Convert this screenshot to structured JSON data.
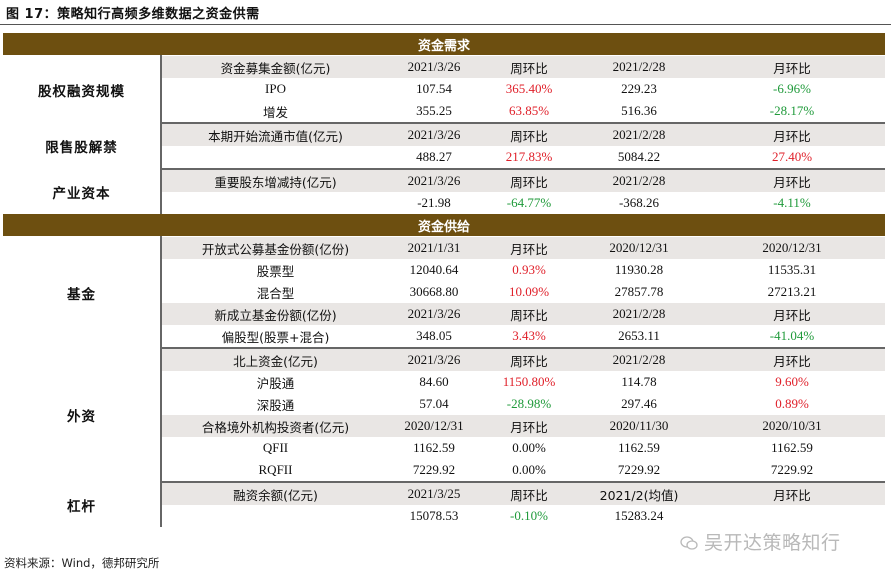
{
  "figure_title": "图 17：策略知行高频多维数据之资金供需",
  "sections": {
    "demand": "资金需求",
    "supply": "资金供给"
  },
  "categories": {
    "equity": "股权融资规模",
    "lockup": "限售股解禁",
    "industrial": "产业资本",
    "funds": "基金",
    "foreign": "外资",
    "leverage": "杠杆"
  },
  "rows": {
    "equity_hd": [
      "资金募集金额(亿元)",
      "2021/3/26",
      "周环比",
      "2021/2/28",
      "月环比"
    ],
    "ipo": [
      "IPO",
      "107.54",
      "365.40%",
      "229.23",
      "-6.96%"
    ],
    "addissue": [
      "增发",
      "355.25",
      "63.85%",
      "516.36",
      "-28.17%"
    ],
    "lockup_hd": [
      "本期开始流通市值(亿元)",
      "2021/3/26",
      "周环比",
      "2021/2/28",
      "月环比"
    ],
    "lockup": [
      "",
      "488.27",
      "217.83%",
      "5084.22",
      "27.40%"
    ],
    "holder_hd": [
      "重要股东增减持(亿元)",
      "2021/3/26",
      "周环比",
      "2021/2/28",
      "月环比"
    ],
    "holder": [
      "",
      "-21.98",
      "-64.77%",
      "-368.26",
      "-4.11%"
    ],
    "fund_hd": [
      "开放式公募基金份额(亿份)",
      "2021/1/31",
      "月环比",
      "2020/12/31",
      "2020/12/31"
    ],
    "stock_fund": [
      "股票型",
      "12040.64",
      "0.93%",
      "11930.28",
      "11535.31"
    ],
    "mixed_fund": [
      "混合型",
      "30668.80",
      "10.09%",
      "27857.78",
      "27213.21"
    ],
    "newfund_hd": [
      "新成立基金份额(亿份)",
      "2021/3/26",
      "周环比",
      "2021/2/28",
      "月环比"
    ],
    "newfund": [
      "偏股型(股票+混合)",
      "348.05",
      "3.43%",
      "2653.11",
      "-41.04%"
    ],
    "north_hd": [
      "北上资金(亿元)",
      "2021/3/26",
      "周环比",
      "2021/2/28",
      "月环比"
    ],
    "hk_sh": [
      "沪股通",
      "84.60",
      "1150.80%",
      "114.78",
      "9.60%"
    ],
    "hk_sz": [
      "深股通",
      "57.04",
      "-28.98%",
      "297.46",
      "0.89%"
    ],
    "qfii_hd": [
      "合格境外机构投资者(亿元)",
      "2020/12/31",
      "月环比",
      "2020/11/30",
      "2020/10/31"
    ],
    "qfii": [
      "QFII",
      "1162.59",
      "0.00%",
      "1162.59",
      "1162.59"
    ],
    "rqfii": [
      "RQFII",
      "7229.92",
      "0.00%",
      "7229.92",
      "7229.92"
    ],
    "margin_hd": [
      "融资余额(亿元)",
      "2021/3/25",
      "周环比",
      "2021/2(均值)",
      "月环比"
    ],
    "margin": [
      "",
      "15078.53",
      "-0.10%",
      "15283.24",
      ""
    ]
  },
  "watermark": "吴开达策略知行",
  "source": "资料来源：Wind，德邦研究所",
  "colors": {
    "band": "#6d4f10",
    "header": "#e9e6e4",
    "up": "#e0202a",
    "down": "#1f9a3a"
  }
}
